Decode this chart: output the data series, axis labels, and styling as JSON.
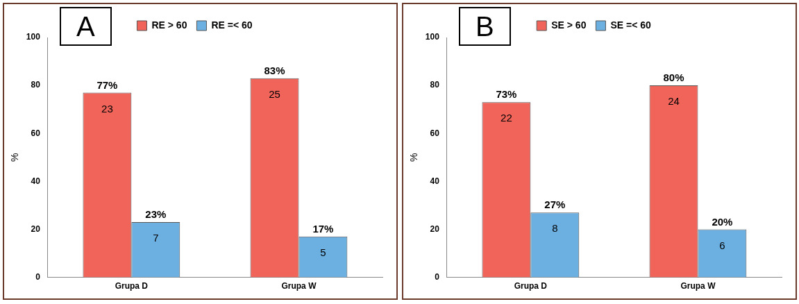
{
  "chart_data": [
    {
      "type": "bar",
      "title": "A",
      "ylabel": "%",
      "categories": [
        "Grupa D",
        "Grupa W"
      ],
      "series": [
        {
          "name": "RE > 60",
          "color": "#f0645a",
          "values": [
            77,
            83
          ],
          "value_labels": [
            "77%",
            "83%"
          ]
        },
        {
          "name": "RE =< 60",
          "color": "#6cb0e2",
          "values": [
            23,
            17
          ],
          "value_labels": [
            "23%",
            "17%"
          ]
        }
      ],
      "annotations": [
        {
          "text": "23",
          "x": "Grupa D",
          "y": 77
        },
        {
          "text": "7",
          "x": "Grupa D",
          "y": 23
        },
        {
          "text": "25",
          "x": "Grupa W",
          "y": 83
        },
        {
          "text": "5",
          "x": "Grupa W",
          "y": 17
        }
      ],
      "ylim": [
        0,
        100
      ],
      "yticks": [
        0,
        20,
        40,
        60,
        80,
        100
      ],
      "grid": false,
      "legend": "top"
    },
    {
      "type": "bar",
      "title": "B",
      "ylabel": "%",
      "categories": [
        "Grupa D",
        "Grupa W"
      ],
      "series": [
        {
          "name": "SE > 60",
          "color": "#f0645a",
          "values": [
            73,
            80
          ],
          "value_labels": [
            "73%",
            "80%"
          ]
        },
        {
          "name": "SE =< 60",
          "color": "#6cb0e2",
          "values": [
            27,
            20
          ],
          "value_labels": [
            "27%",
            "20%"
          ]
        }
      ],
      "annotations": [
        {
          "text": "22",
          "x": "Grupa D",
          "y": 73
        },
        {
          "text": "8",
          "x": "Grupa D",
          "y": 27
        },
        {
          "text": "24",
          "x": "Grupa W",
          "y": 80
        },
        {
          "text": "6",
          "x": "Grupa W",
          "y": 20
        }
      ],
      "ylim": [
        0,
        100
      ],
      "yticks": [
        0,
        20,
        40,
        60,
        80,
        100
      ],
      "grid": false,
      "legend": "top"
    }
  ]
}
